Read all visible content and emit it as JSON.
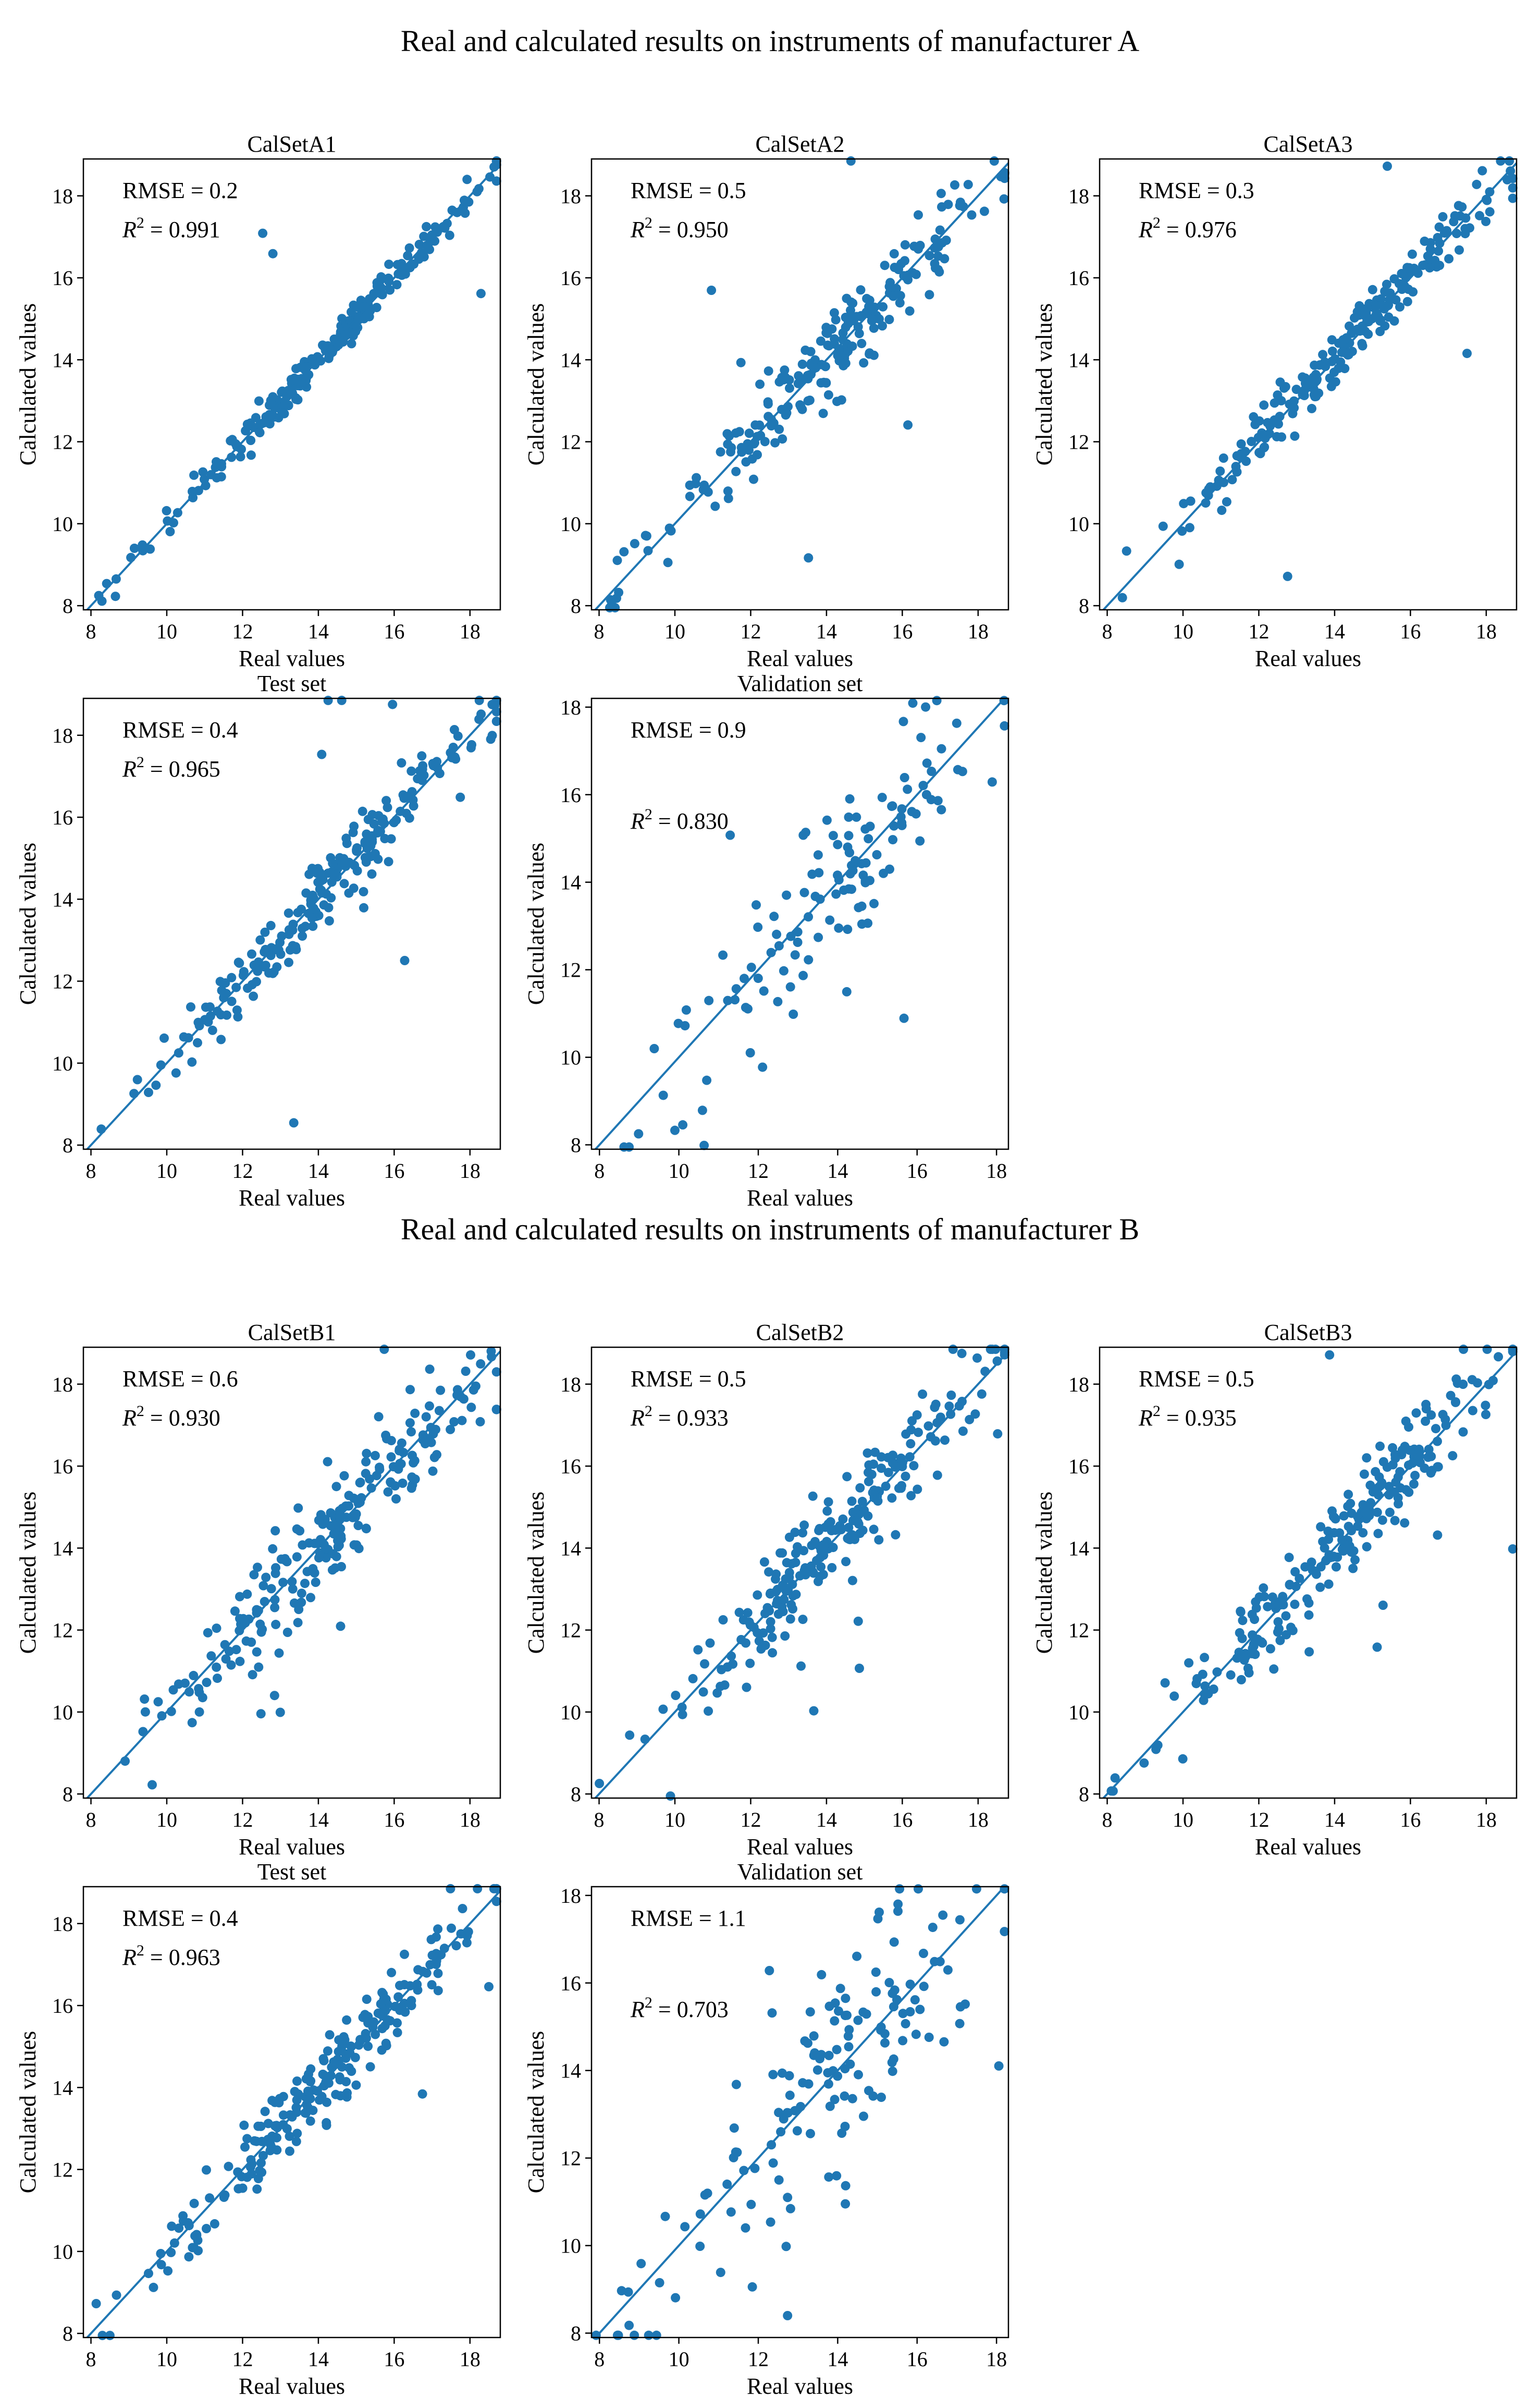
{
  "figure": {
    "section_titles": [
      "Real and calculated results on instruments of manufacturer A",
      "Real and calculated results on instruments of manufacturer B"
    ]
  },
  "style": {
    "point_color": "#1f77b4",
    "line_color": "#1f77b4",
    "axis_color": "#000000"
  },
  "chart_data": [
    {
      "type": "scatter",
      "section": "A",
      "title": "CalSetA1",
      "xlabel": "Real values",
      "ylabel": "Calculated values",
      "rmse_text": "RMSE = 0.2",
      "r2_value": "0.991",
      "xlim": [
        7.8,
        18.8
      ],
      "ylim": [
        7.9,
        18.9
      ],
      "xticks": [
        8,
        10,
        12,
        14,
        16,
        18
      ],
      "yticks": [
        8,
        10,
        12,
        14,
        16,
        18
      ],
      "n_points": 230,
      "r2": 0.991,
      "seed": 11
    },
    {
      "type": "scatter",
      "section": "A",
      "title": "CalSetA2",
      "xlabel": "Real values",
      "ylabel": "Calculated values",
      "rmse_text": "RMSE = 0.5",
      "r2_value": "0.950",
      "xlim": [
        7.8,
        18.8
      ],
      "ylim": [
        7.9,
        18.9
      ],
      "xticks": [
        8,
        10,
        12,
        14,
        16,
        18
      ],
      "yticks": [
        8,
        10,
        12,
        14,
        16,
        18
      ],
      "n_points": 230,
      "r2": 0.95,
      "seed": 23
    },
    {
      "type": "scatter",
      "section": "A",
      "title": "CalSetA3",
      "xlabel": "Real values",
      "ylabel": "Calculated values",
      "rmse_text": "RMSE = 0.3",
      "r2_value": "0.976",
      "xlim": [
        7.8,
        18.8
      ],
      "ylim": [
        7.9,
        18.9
      ],
      "xticks": [
        8,
        10,
        12,
        14,
        16,
        18
      ],
      "yticks": [
        8,
        10,
        12,
        14,
        16,
        18
      ],
      "n_points": 230,
      "r2": 0.976,
      "seed": 37
    },
    {
      "type": "scatter",
      "section": "A",
      "title": "Test set",
      "xlabel": "Real values",
      "ylabel": "Calculated values",
      "rmse_text": "RMSE = 0.4",
      "r2_value": "0.965",
      "xlim": [
        7.8,
        18.8
      ],
      "ylim": [
        7.9,
        18.9
      ],
      "xticks": [
        8,
        10,
        12,
        14,
        16,
        18
      ],
      "yticks": [
        8,
        10,
        12,
        14,
        16,
        18
      ],
      "n_points": 230,
      "r2": 0.965,
      "seed": 41
    },
    {
      "type": "scatter",
      "section": "A",
      "title": "Validation set",
      "xlabel": "Real values",
      "ylabel": "Calculated values",
      "rmse_text": "RMSE = 0.9",
      "r2_value": "0.830",
      "xlim": [
        7.8,
        18.3
      ],
      "ylim": [
        7.9,
        18.2
      ],
      "xticks": [
        8,
        10,
        12,
        14,
        16,
        18
      ],
      "yticks": [
        8,
        10,
        12,
        14,
        16,
        18
      ],
      "n_points": 130,
      "r2": 0.83,
      "seed": 53
    },
    {
      "type": "scatter",
      "section": "B",
      "title": "CalSetB1",
      "xlabel": "Real values",
      "ylabel": "Calculated values",
      "rmse_text": "RMSE = 0.6",
      "r2_value": "0.930",
      "xlim": [
        7.8,
        18.8
      ],
      "ylim": [
        7.9,
        18.9
      ],
      "xticks": [
        8,
        10,
        12,
        14,
        16,
        18
      ],
      "yticks": [
        8,
        10,
        12,
        14,
        16,
        18
      ],
      "n_points": 230,
      "r2": 0.93,
      "seed": 61
    },
    {
      "type": "scatter",
      "section": "B",
      "title": "CalSetB2",
      "xlabel": "Real values",
      "ylabel": "Calculated values",
      "rmse_text": "RMSE = 0.5",
      "r2_value": "0.933",
      "xlim": [
        7.8,
        18.8
      ],
      "ylim": [
        7.9,
        18.9
      ],
      "xticks": [
        8,
        10,
        12,
        14,
        16,
        18
      ],
      "yticks": [
        8,
        10,
        12,
        14,
        16,
        18
      ],
      "n_points": 230,
      "r2": 0.933,
      "seed": 71
    },
    {
      "type": "scatter",
      "section": "B",
      "title": "CalSetB3",
      "xlabel": "Real values",
      "ylabel": "Calculated values",
      "rmse_text": "RMSE = 0.5",
      "r2_value": "0.935",
      "xlim": [
        7.8,
        18.8
      ],
      "ylim": [
        7.9,
        18.9
      ],
      "xticks": [
        8,
        10,
        12,
        14,
        16,
        18
      ],
      "yticks": [
        8,
        10,
        12,
        14,
        16,
        18
      ],
      "n_points": 230,
      "r2": 0.935,
      "seed": 83
    },
    {
      "type": "scatter",
      "section": "B",
      "title": "Test set",
      "xlabel": "Real values",
      "ylabel": "Calculated values",
      "rmse_text": "RMSE = 0.4",
      "r2_value": "0.963",
      "xlim": [
        7.8,
        18.8
      ],
      "ylim": [
        7.9,
        18.9
      ],
      "xticks": [
        8,
        10,
        12,
        14,
        16,
        18
      ],
      "yticks": [
        8,
        10,
        12,
        14,
        16,
        18
      ],
      "n_points": 230,
      "r2": 0.963,
      "seed": 97
    },
    {
      "type": "scatter",
      "section": "B",
      "title": "Validation set",
      "xlabel": "Real values",
      "ylabel": "Calculated values",
      "rmse_text": "RMSE = 1.1",
      "r2_value": "0.703",
      "xlim": [
        7.8,
        18.3
      ],
      "ylim": [
        7.9,
        18.2
      ],
      "xticks": [
        8,
        10,
        12,
        14,
        16,
        18
      ],
      "yticks": [
        8,
        10,
        12,
        14,
        16,
        18
      ],
      "n_points": 150,
      "r2": 0.703,
      "seed": 101
    }
  ]
}
